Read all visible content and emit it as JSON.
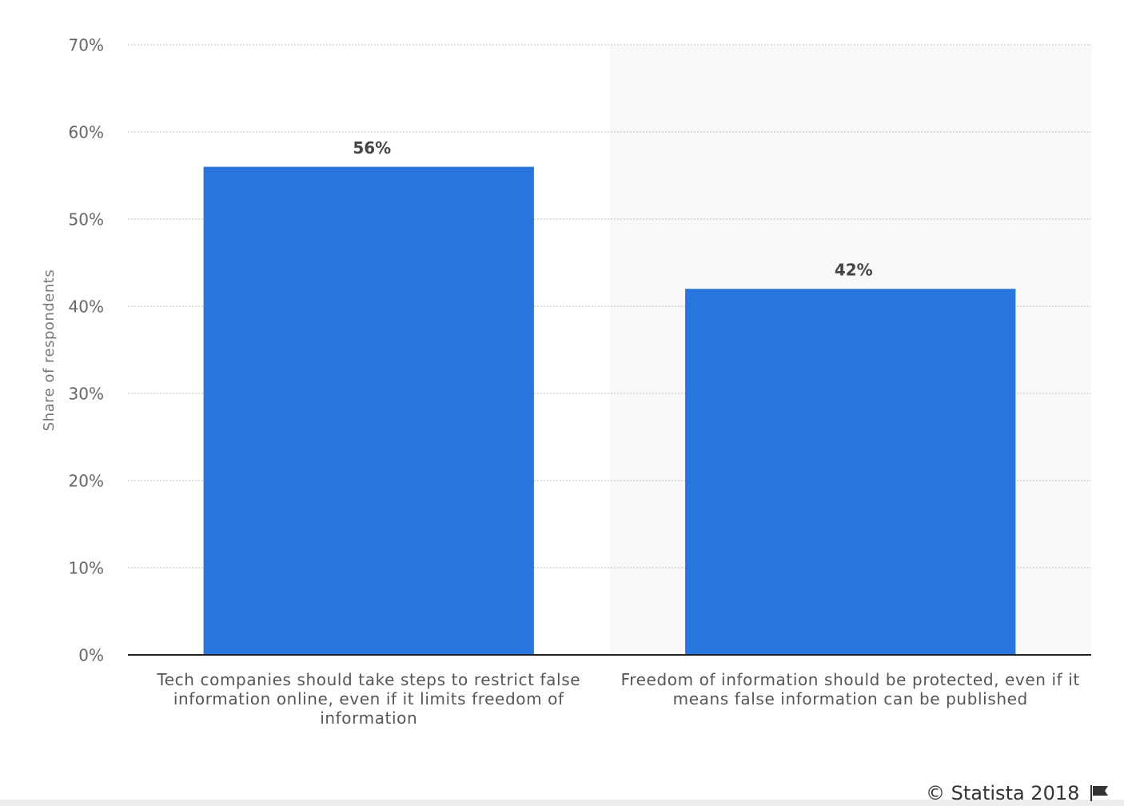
{
  "chart_data": {
    "type": "bar",
    "y_axis_label": "Share of respondents",
    "categories": [
      "Tech companies should take steps to restrict false information online, even if it limits freedom of information",
      "Freedom of information should be protected, even if it means false information can be published"
    ],
    "values": [
      56,
      42
    ],
    "value_labels": [
      "56%",
      "42%"
    ],
    "color": "#2876dd",
    "ylim": [
      0,
      70
    ],
    "yticks": [
      {
        "value": 0,
        "label": "0%"
      },
      {
        "value": 10,
        "label": "10%"
      },
      {
        "value": 20,
        "label": "20%"
      },
      {
        "value": 30,
        "label": "30%"
      },
      {
        "value": 40,
        "label": "40%"
      },
      {
        "value": 50,
        "label": "50%"
      },
      {
        "value": 60,
        "label": "60%"
      },
      {
        "value": 70,
        "label": "70%"
      }
    ],
    "grid": true,
    "source": "© Statista 2018"
  }
}
